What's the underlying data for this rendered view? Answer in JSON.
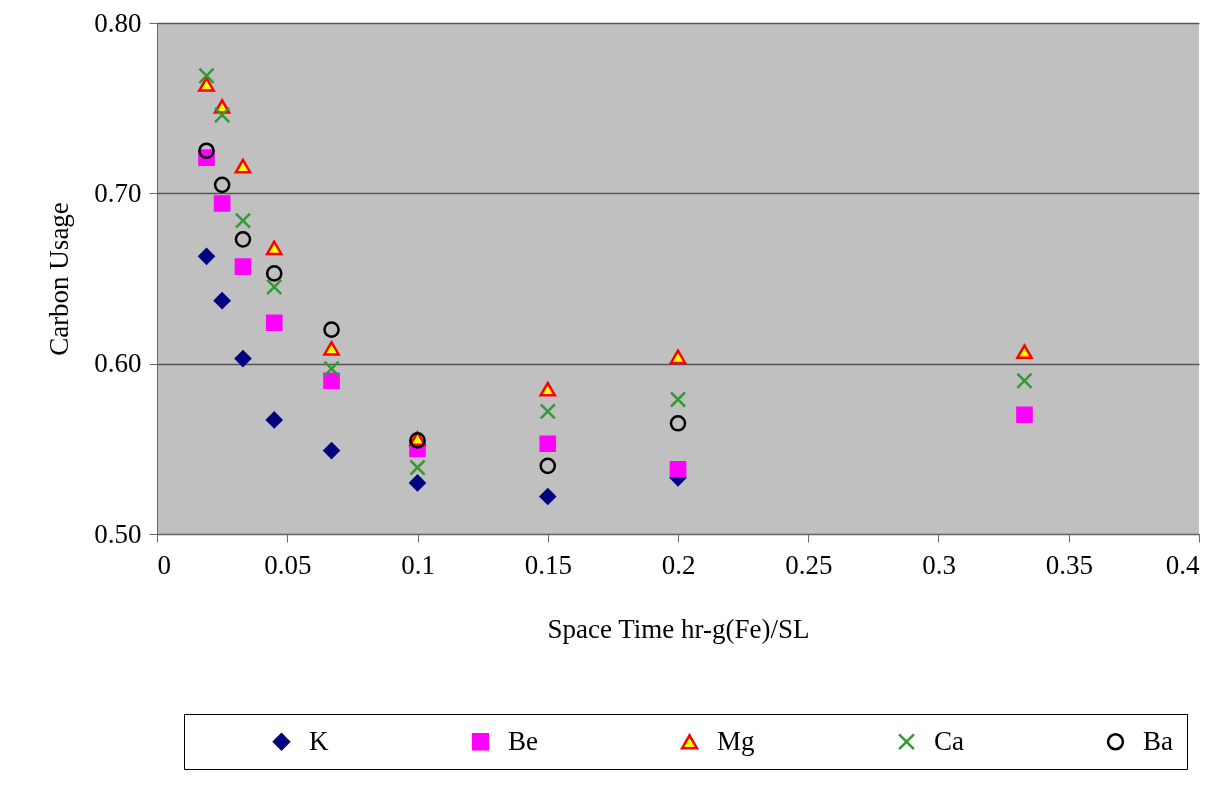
{
  "chart_data": {
    "type": "scatter",
    "xlabel": "Space Time hr-g(Fe)/SL",
    "ylabel": "Carbon Usage",
    "x": [
      0.019,
      0.025,
      0.033,
      0.045,
      0.067,
      0.1,
      0.15,
      0.2,
      0.333
    ],
    "series": [
      {
        "name": "K",
        "color": "#000080",
        "marker": "diamond",
        "values": [
          0.663,
          0.637,
          0.603,
          0.567,
          0.549,
          0.53,
          0.522,
          0.533,
          null
        ]
      },
      {
        "name": "Be",
        "color": "#ff00ff",
        "marker": "square",
        "values": [
          0.721,
          0.694,
          0.657,
          0.624,
          0.59,
          0.55,
          0.553,
          0.538,
          0.57
        ]
      },
      {
        "name": "Mg",
        "color": "#ff0000",
        "marker": "triangle",
        "values": [
          0.764,
          0.751,
          0.716,
          0.668,
          0.609,
          0.556,
          0.585,
          0.604,
          0.607
        ]
      },
      {
        "name": "Ca",
        "color": "#339933",
        "marker": "cross",
        "values": [
          0.769,
          0.746,
          0.684,
          0.645,
          0.597,
          0.539,
          0.572,
          0.579,
          0.59
        ]
      },
      {
        "name": "Ba",
        "color": "#000000",
        "marker": "circle",
        "values": [
          0.725,
          0.705,
          0.673,
          0.653,
          0.62,
          0.555,
          0.54,
          0.565,
          null
        ]
      }
    ],
    "xlim": [
      0,
      0.4
    ],
    "xticks": [
      0,
      0.05,
      0.1,
      0.15,
      0.2,
      0.25,
      0.3,
      0.35,
      0.4
    ],
    "ylim": [
      0.5,
      0.8
    ],
    "yticks": [
      {
        "value": 0.5,
        "label": "0.50"
      },
      {
        "value": 0.6,
        "label": "0.60"
      },
      {
        "value": 0.7,
        "label": "0.70"
      },
      {
        "value": 0.8,
        "label": "0.80"
      }
    ],
    "grid": "y",
    "legend": "bottom"
  }
}
